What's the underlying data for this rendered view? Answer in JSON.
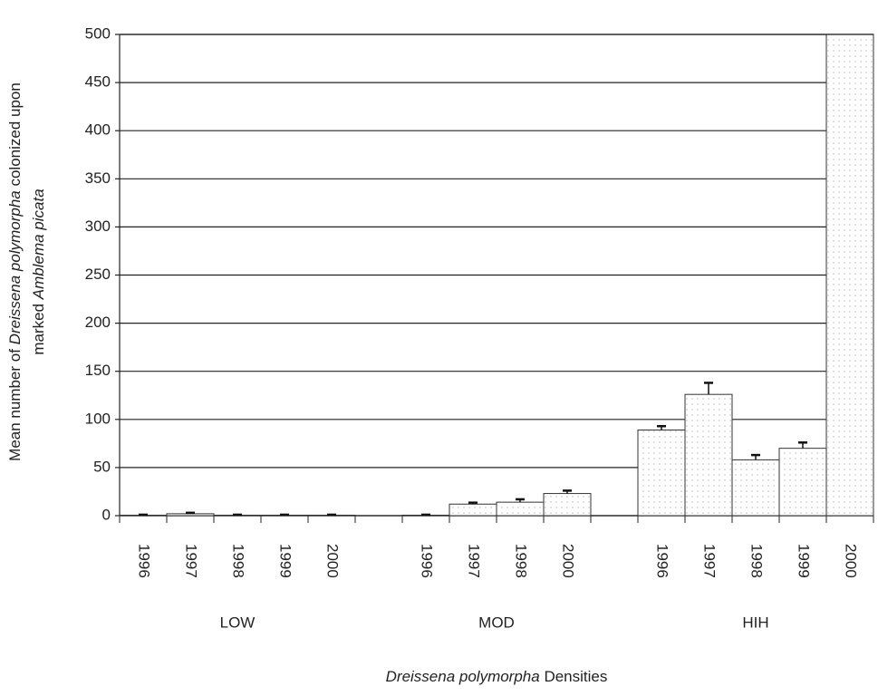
{
  "chart_data": {
    "type": "bar",
    "categories": [
      "1996",
      "1997",
      "1998",
      "1999",
      "2000",
      null,
      "1996",
      "1997",
      "1998",
      "2000",
      null,
      "1996",
      "1997",
      "1998",
      "1999",
      "2000"
    ],
    "values": [
      0.5,
      2,
      0.5,
      0.5,
      0.5,
      null,
      0.5,
      12,
      14,
      23,
      null,
      89,
      126,
      58,
      70,
      500
    ],
    "errors": [
      0.5,
      1,
      0.5,
      0.5,
      0.5,
      null,
      0.5,
      1.5,
      3,
      3,
      null,
      4,
      12,
      5,
      6,
      null
    ],
    "group_labels": [
      "LOW",
      "MOD",
      "HIH"
    ],
    "x_label": [
      "Dreissena polymorpha",
      " Densities"
    ],
    "y_label": [
      [
        "Mean number of ",
        "Dreissena polymorpha",
        " colonized upon"
      ],
      [
        "marked ",
        "Amblema picata"
      ]
    ],
    "ylim": [
      0,
      500
    ],
    "yticks": [
      0,
      50,
      100,
      150,
      200,
      250,
      300,
      350,
      400,
      450,
      500
    ],
    "grid": true,
    "color": "#ffffff"
  }
}
